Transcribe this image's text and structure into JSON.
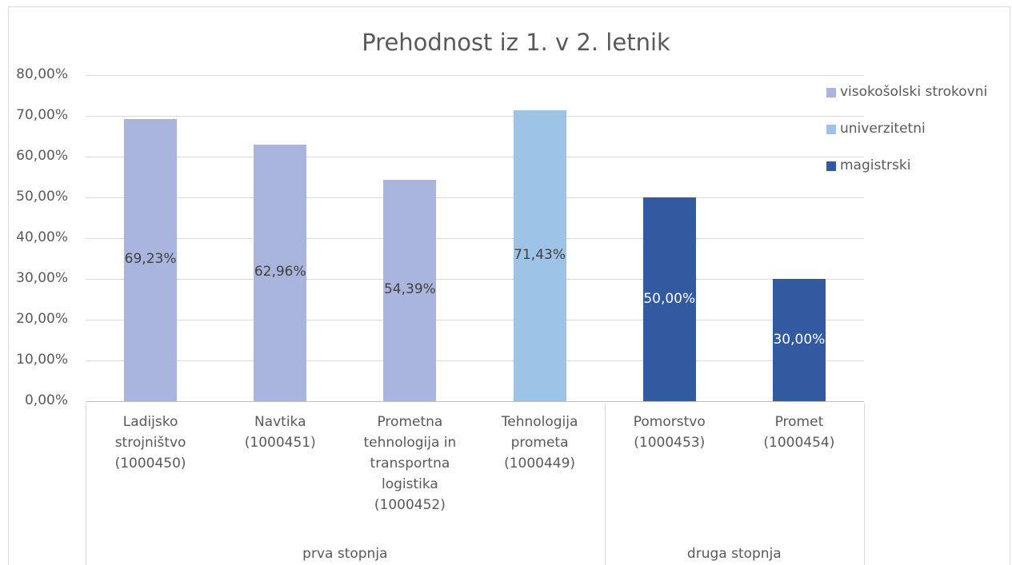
{
  "chart_data": {
    "type": "bar",
    "title": "Prehodnost iz 1. v 2. letnik",
    "categories": [
      "Ladijsko strojništvo (1000450)",
      "Navtika (1000451)",
      "Prometna tehnologija in transportna logistika (1000452)",
      "Tehnologija prometa (1000449)",
      "Pomorstvo (1000453)",
      "Promet (1000454)"
    ],
    "groups": [
      {
        "label": "prva stopnja",
        "span": 4
      },
      {
        "label": "druga stopnja",
        "span": 2
      }
    ],
    "series": [
      {
        "name": "visokošolski strokovni",
        "color": "#a9b5dc",
        "label_color": "#404040",
        "values": [
          69.23,
          62.96,
          54.39,
          null,
          null,
          null
        ],
        "value_labels": [
          "69,23%",
          "62,96%",
          "54,39%",
          null,
          null,
          null
        ]
      },
      {
        "name": "univerzitetni",
        "color": "#9dc3e6",
        "label_color": "#404040",
        "values": [
          null,
          null,
          null,
          71.43,
          null,
          null
        ],
        "value_labels": [
          null,
          null,
          null,
          "71,43%",
          null,
          null
        ]
      },
      {
        "name": "magistrski",
        "color": "#335aa1",
        "label_color": "#ffffff",
        "values": [
          null,
          null,
          null,
          null,
          50.0,
          30.0
        ],
        "value_labels": [
          null,
          null,
          null,
          null,
          "50,00%",
          "30,00%"
        ]
      }
    ],
    "ylim": [
      0,
      80
    ],
    "yticks": [
      {
        "value": 0,
        "label": "0,00%"
      },
      {
        "value": 10,
        "label": "10,00%"
      },
      {
        "value": 20,
        "label": "20,00%"
      },
      {
        "value": 30,
        "label": "30,00%"
      },
      {
        "value": 40,
        "label": "40,00%"
      },
      {
        "value": 50,
        "label": "50,00%"
      },
      {
        "value": 60,
        "label": "60,00%"
      },
      {
        "value": 70,
        "label": "70,00%"
      },
      {
        "value": 80,
        "label": "80,00%"
      }
    ],
    "grid": true,
    "legend": "right"
  }
}
